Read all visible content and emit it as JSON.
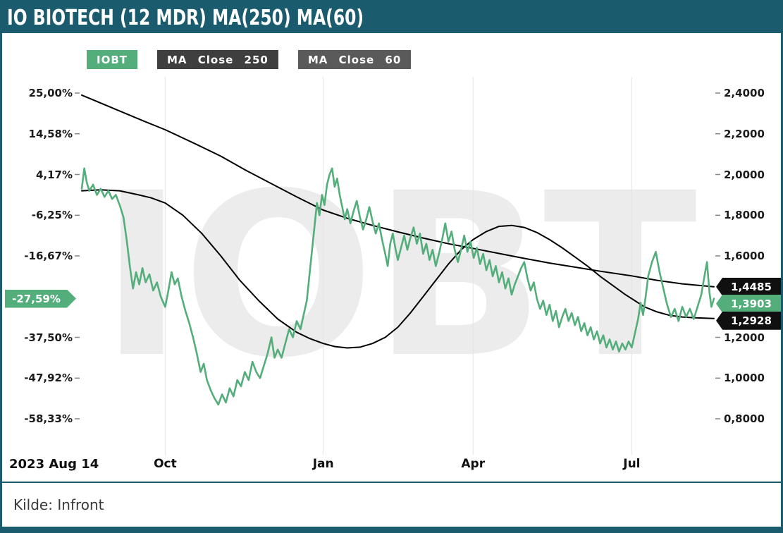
{
  "title_bar": {
    "title": "IO BIOTECH (12 MDR) MA(250) MA(60)"
  },
  "legend": [
    {
      "label": "IOBT",
      "bg": "#54ae7b",
      "text": "#ffffff"
    },
    {
      "label": "MA Close 250",
      "bg": "#3f3f3f",
      "text": "#ffffff"
    },
    {
      "label": "MA Close 60",
      "bg": "#5a5a5a",
      "text": "#ffffff"
    }
  ],
  "footer": {
    "source": "Kilde: Infront"
  },
  "colors": {
    "accent": "#1a5b6e",
    "series_green": "#54ae7b",
    "ma_line": "#000000",
    "watermark": "#ececec"
  },
  "chart_data": {
    "type": "line",
    "title": "IO BIOTECH (12 MDR) MA(250) MA(60)",
    "watermark": "IOBT",
    "x_range": [
      "2023 Aug 14",
      "Jul"
    ],
    "ylim_price": [
      0.8,
      2.4
    ],
    "ylim_percent": [
      "-58,33%",
      "25,00%"
    ],
    "base_price": 1.92,
    "grid": "vertical-months",
    "legend_position": "top-left",
    "yticks": [
      {
        "percent": "25,00%",
        "price_label": "2,4000",
        "price": 2.4
      },
      {
        "percent": "14,58%",
        "price_label": "2,2000",
        "price": 2.2
      },
      {
        "percent": "4,17%",
        "price_label": "2,0000",
        "price": 2.0
      },
      {
        "percent": "-6,25%",
        "price_label": "1,8000",
        "price": 1.8
      },
      {
        "percent": "-16,67%",
        "price_label": "1,6000",
        "price": 1.6
      },
      {
        "percent": "-37,50%",
        "price_label": "1,2000",
        "price": 1.2
      },
      {
        "percent": "-47,92%",
        "price_label": "1,0000",
        "price": 1.0
      },
      {
        "percent": "-58,33%",
        "price_label": "0,8000",
        "price": 0.8
      }
    ],
    "xticks": [
      {
        "label": "2023 Aug 14",
        "t": 0.0,
        "align": "left",
        "grid": false
      },
      {
        "label": "Oct",
        "t": 0.132,
        "grid": true
      },
      {
        "label": "Jan",
        "t": 0.382,
        "grid": true
      },
      {
        "label": "Apr",
        "t": 0.619,
        "grid": true
      },
      {
        "label": "Jul",
        "t": 0.87,
        "grid": true
      }
    ],
    "markers": {
      "left": {
        "label": "-27,59%",
        "price": 1.3903,
        "bg": "#54ae7b",
        "text": "#ffffff"
      },
      "right": [
        {
          "label": "1,4485",
          "price": 1.4485,
          "bg": "#101010",
          "text": "#ffffff",
          "series": "MA Close 250"
        },
        {
          "label": "1,3903",
          "price": 1.3903,
          "bg": "#54ae7b",
          "text": "#ffffff",
          "series": "IOBT"
        },
        {
          "label": "1,2928",
          "price": 1.2928,
          "bg": "#101010",
          "text": "#ffffff",
          "series": "MA Close 60"
        }
      ]
    },
    "series": [
      {
        "name": "MA Close 250",
        "color": "#000000",
        "width": 2,
        "points": [
          [
            0,
            2.39
          ],
          [
            0.05,
            2.325
          ],
          [
            0.1,
            2.26
          ],
          [
            0.132,
            2.22
          ],
          [
            0.18,
            2.15
          ],
          [
            0.22,
            2.09
          ],
          [
            0.26,
            2.02
          ],
          [
            0.3,
            1.955
          ],
          [
            0.34,
            1.89
          ],
          [
            0.382,
            1.825
          ],
          [
            0.42,
            1.785
          ],
          [
            0.46,
            1.75
          ],
          [
            0.5,
            1.718
          ],
          [
            0.54,
            1.688
          ],
          [
            0.58,
            1.66
          ],
          [
            0.619,
            1.637
          ],
          [
            0.66,
            1.612
          ],
          [
            0.7,
            1.588
          ],
          [
            0.74,
            1.565
          ],
          [
            0.78,
            1.545
          ],
          [
            0.82,
            1.525
          ],
          [
            0.87,
            1.502
          ],
          [
            0.91,
            1.48
          ],
          [
            0.95,
            1.463
          ],
          [
            1,
            1.4485
          ]
        ]
      },
      {
        "name": "MA Close 60",
        "color": "#000000",
        "width": 2,
        "points": [
          [
            0,
            1.92
          ],
          [
            0.03,
            1.925
          ],
          [
            0.06,
            1.92
          ],
          [
            0.09,
            1.9
          ],
          [
            0.11,
            1.885
          ],
          [
            0.132,
            1.86
          ],
          [
            0.16,
            1.8
          ],
          [
            0.19,
            1.71
          ],
          [
            0.22,
            1.6
          ],
          [
            0.25,
            1.48
          ],
          [
            0.28,
            1.38
          ],
          [
            0.31,
            1.29
          ],
          [
            0.34,
            1.225
          ],
          [
            0.36,
            1.195
          ],
          [
            0.382,
            1.17
          ],
          [
            0.4,
            1.155
          ],
          [
            0.42,
            1.148
          ],
          [
            0.44,
            1.152
          ],
          [
            0.46,
            1.17
          ],
          [
            0.48,
            1.2
          ],
          [
            0.5,
            1.25
          ],
          [
            0.52,
            1.32
          ],
          [
            0.54,
            1.4
          ],
          [
            0.56,
            1.48
          ],
          [
            0.58,
            1.56
          ],
          [
            0.6,
            1.63
          ],
          [
            0.619,
            1.68
          ],
          [
            0.64,
            1.72
          ],
          [
            0.66,
            1.745
          ],
          [
            0.68,
            1.75
          ],
          [
            0.7,
            1.74
          ],
          [
            0.72,
            1.715
          ],
          [
            0.74,
            1.68
          ],
          [
            0.76,
            1.64
          ],
          [
            0.78,
            1.595
          ],
          [
            0.8,
            1.55
          ],
          [
            0.82,
            1.5
          ],
          [
            0.84,
            1.455
          ],
          [
            0.86,
            1.41
          ],
          [
            0.87,
            1.39
          ],
          [
            0.89,
            1.35
          ],
          [
            0.91,
            1.325
          ],
          [
            0.93,
            1.308
          ],
          [
            0.95,
            1.3
          ],
          [
            0.97,
            1.296
          ],
          [
            1,
            1.2928
          ]
        ]
      },
      {
        "name": "IOBT",
        "color": "#54ae7b",
        "width": 2.6,
        "points": [
          [
            0,
            1.93
          ],
          [
            0.004,
            2.03
          ],
          [
            0.008,
            1.96
          ],
          [
            0.012,
            1.92
          ],
          [
            0.018,
            1.95
          ],
          [
            0.024,
            1.9
          ],
          [
            0.03,
            1.93
          ],
          [
            0.036,
            1.89
          ],
          [
            0.042,
            1.92
          ],
          [
            0.048,
            1.88
          ],
          [
            0.054,
            1.9
          ],
          [
            0.06,
            1.85
          ],
          [
            0.066,
            1.79
          ],
          [
            0.071,
            1.68
          ],
          [
            0.076,
            1.55
          ],
          [
            0.081,
            1.44
          ],
          [
            0.086,
            1.52
          ],
          [
            0.091,
            1.46
          ],
          [
            0.096,
            1.54
          ],
          [
            0.101,
            1.47
          ],
          [
            0.107,
            1.51
          ],
          [
            0.113,
            1.43
          ],
          [
            0.119,
            1.47
          ],
          [
            0.125,
            1.4
          ],
          [
            0.132,
            1.35
          ],
          [
            0.137,
            1.43
          ],
          [
            0.142,
            1.52
          ],
          [
            0.147,
            1.46
          ],
          [
            0.152,
            1.49
          ],
          [
            0.158,
            1.4
          ],
          [
            0.164,
            1.33
          ],
          [
            0.17,
            1.27
          ],
          [
            0.176,
            1.2
          ],
          [
            0.182,
            1.12
          ],
          [
            0.188,
            1.03
          ],
          [
            0.193,
            1.07
          ],
          [
            0.198,
            0.99
          ],
          [
            0.204,
            0.94
          ],
          [
            0.21,
            0.9
          ],
          [
            0.216,
            0.87
          ],
          [
            0.222,
            0.92
          ],
          [
            0.228,
            0.88
          ],
          [
            0.234,
            0.95
          ],
          [
            0.24,
            0.91
          ],
          [
            0.246,
            0.99
          ],
          [
            0.252,
            0.96
          ],
          [
            0.258,
            1.03
          ],
          [
            0.264,
            0.99
          ],
          [
            0.27,
            1.08
          ],
          [
            0.276,
            1.03
          ],
          [
            0.282,
            1.0
          ],
          [
            0.288,
            1.06
          ],
          [
            0.294,
            1.12
          ],
          [
            0.3,
            1.2
          ],
          [
            0.305,
            1.1
          ],
          [
            0.31,
            1.14
          ],
          [
            0.316,
            1.1
          ],
          [
            0.322,
            1.17
          ],
          [
            0.328,
            1.24
          ],
          [
            0.334,
            1.2
          ],
          [
            0.34,
            1.28
          ],
          [
            0.346,
            1.24
          ],
          [
            0.351,
            1.31
          ],
          [
            0.356,
            1.38
          ],
          [
            0.36,
            1.5
          ],
          [
            0.364,
            1.62
          ],
          [
            0.368,
            1.74
          ],
          [
            0.372,
            1.86
          ],
          [
            0.376,
            1.8
          ],
          [
            0.38,
            1.9
          ],
          [
            0.384,
            1.85
          ],
          [
            0.388,
            1.95
          ],
          [
            0.392,
            2.0
          ],
          [
            0.396,
            2.03
          ],
          [
            0.4,
            1.94
          ],
          [
            0.404,
            1.98
          ],
          [
            0.408,
            1.9
          ],
          [
            0.412,
            1.84
          ],
          [
            0.416,
            1.78
          ],
          [
            0.42,
            1.83
          ],
          [
            0.425,
            1.76
          ],
          [
            0.43,
            1.82
          ],
          [
            0.435,
            1.87
          ],
          [
            0.44,
            1.79
          ],
          [
            0.445,
            1.73
          ],
          [
            0.45,
            1.78
          ],
          [
            0.455,
            1.84
          ],
          [
            0.46,
            1.77
          ],
          [
            0.465,
            1.71
          ],
          [
            0.47,
            1.76
          ],
          [
            0.475,
            1.68
          ],
          [
            0.48,
            1.61
          ],
          [
            0.484,
            1.55
          ],
          [
            0.488,
            1.66
          ],
          [
            0.492,
            1.71
          ],
          [
            0.496,
            1.64
          ],
          [
            0.5,
            1.58
          ],
          [
            0.505,
            1.64
          ],
          [
            0.51,
            1.7
          ],
          [
            0.515,
            1.63
          ],
          [
            0.52,
            1.69
          ],
          [
            0.525,
            1.74
          ],
          [
            0.53,
            1.66
          ],
          [
            0.535,
            1.71
          ],
          [
            0.54,
            1.61
          ],
          [
            0.545,
            1.66
          ],
          [
            0.55,
            1.58
          ],
          [
            0.555,
            1.63
          ],
          [
            0.56,
            1.55
          ],
          [
            0.565,
            1.61
          ],
          [
            0.57,
            1.68
          ],
          [
            0.575,
            1.76
          ],
          [
            0.58,
            1.67
          ],
          [
            0.585,
            1.72
          ],
          [
            0.59,
            1.63
          ],
          [
            0.595,
            1.57
          ],
          [
            0.6,
            1.63
          ],
          [
            0.605,
            1.7
          ],
          [
            0.61,
            1.62
          ],
          [
            0.615,
            1.67
          ],
          [
            0.62,
            1.59
          ],
          [
            0.625,
            1.64
          ],
          [
            0.63,
            1.56
          ],
          [
            0.635,
            1.61
          ],
          [
            0.64,
            1.53
          ],
          [
            0.645,
            1.58
          ],
          [
            0.65,
            1.5
          ],
          [
            0.655,
            1.55
          ],
          [
            0.66,
            1.47
          ],
          [
            0.665,
            1.52
          ],
          [
            0.67,
            1.44
          ],
          [
            0.675,
            1.49
          ],
          [
            0.68,
            1.41
          ],
          [
            0.685,
            1.46
          ],
          [
            0.69,
            1.5
          ],
          [
            0.695,
            1.54
          ],
          [
            0.7,
            1.57
          ],
          [
            0.705,
            1.49
          ],
          [
            0.71,
            1.43
          ],
          [
            0.715,
            1.47
          ],
          [
            0.72,
            1.39
          ],
          [
            0.725,
            1.34
          ],
          [
            0.73,
            1.38
          ],
          [
            0.735,
            1.31
          ],
          [
            0.74,
            1.36
          ],
          [
            0.745,
            1.28
          ],
          [
            0.75,
            1.33
          ],
          [
            0.755,
            1.25
          ],
          [
            0.76,
            1.3
          ],
          [
            0.765,
            1.34
          ],
          [
            0.77,
            1.28
          ],
          [
            0.775,
            1.32
          ],
          [
            0.78,
            1.26
          ],
          [
            0.785,
            1.3
          ],
          [
            0.79,
            1.23
          ],
          [
            0.795,
            1.27
          ],
          [
            0.8,
            1.21
          ],
          [
            0.805,
            1.25
          ],
          [
            0.81,
            1.19
          ],
          [
            0.815,
            1.23
          ],
          [
            0.82,
            1.17
          ],
          [
            0.825,
            1.21
          ],
          [
            0.83,
            1.15
          ],
          [
            0.835,
            1.19
          ],
          [
            0.84,
            1.14
          ],
          [
            0.845,
            1.18
          ],
          [
            0.85,
            1.13
          ],
          [
            0.855,
            1.17
          ],
          [
            0.86,
            1.14
          ],
          [
            0.865,
            1.18
          ],
          [
            0.87,
            1.15
          ],
          [
            0.875,
            1.22
          ],
          [
            0.88,
            1.29
          ],
          [
            0.884,
            1.37
          ],
          [
            0.888,
            1.31
          ],
          [
            0.892,
            1.4
          ],
          [
            0.896,
            1.5
          ],
          [
            0.902,
            1.57
          ],
          [
            0.908,
            1.62
          ],
          [
            0.914,
            1.52
          ],
          [
            0.92,
            1.44
          ],
          [
            0.926,
            1.36
          ],
          [
            0.932,
            1.3
          ],
          [
            0.938,
            1.34
          ],
          [
            0.944,
            1.28
          ],
          [
            0.95,
            1.35
          ],
          [
            0.956,
            1.3
          ],
          [
            0.962,
            1.34
          ],
          [
            0.968,
            1.29
          ],
          [
            0.974,
            1.35
          ],
          [
            0.98,
            1.41
          ],
          [
            0.985,
            1.5
          ],
          [
            0.989,
            1.57
          ],
          [
            0.993,
            1.42
          ],
          [
            0.996,
            1.35
          ],
          [
            1,
            1.3903
          ]
        ]
      }
    ]
  }
}
